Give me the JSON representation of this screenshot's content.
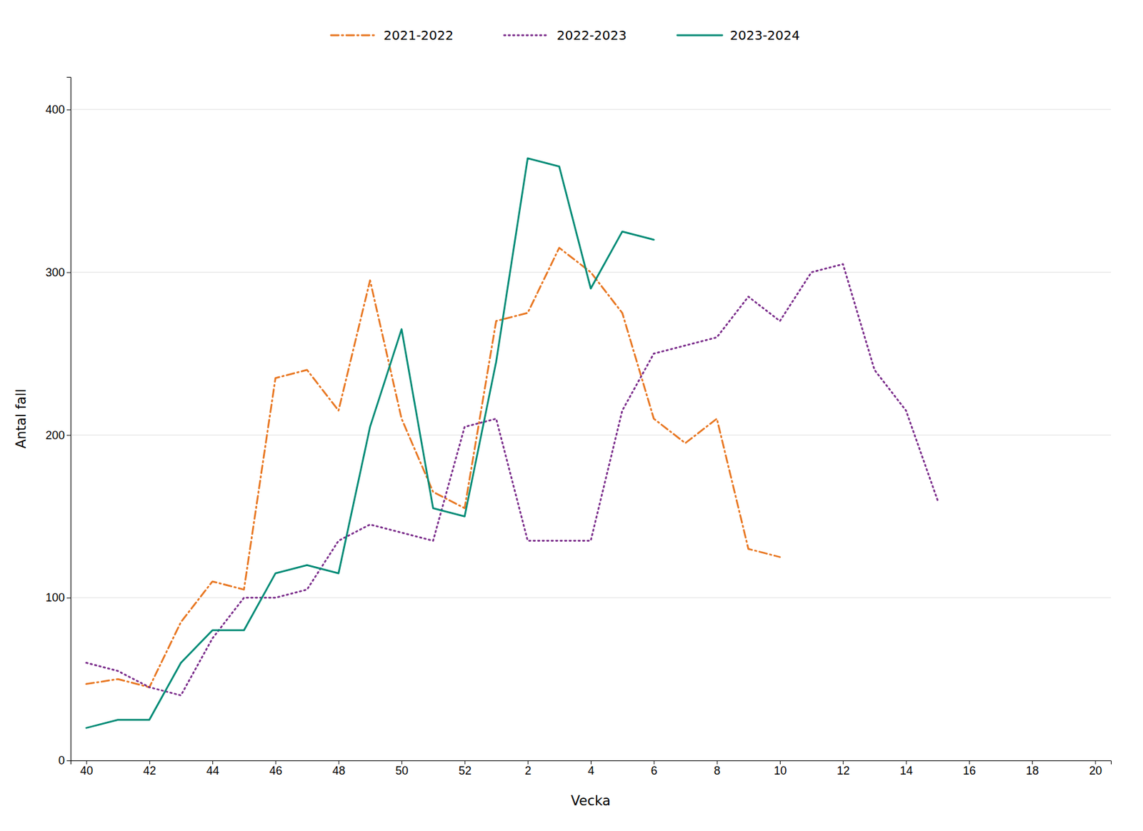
{
  "chart_data": {
    "type": "line",
    "xlabel": "Vecka",
    "ylabel": "Antal fall",
    "categories": [
      "40",
      null,
      "42",
      null,
      "44",
      null,
      "46",
      null,
      "48",
      null,
      "50",
      null,
      "52",
      null,
      "2",
      null,
      "4",
      null,
      "6",
      null,
      "8",
      null,
      "10",
      null,
      "12",
      null,
      "14",
      null,
      "16",
      null,
      "18",
      null,
      "20"
    ],
    "series": [
      {
        "name": "2021-2022",
        "color": "#E87722",
        "line_style": "dashdot",
        "values": [
          47,
          50,
          45,
          85,
          110,
          105,
          235,
          240,
          215,
          295,
          210,
          165,
          155,
          270,
          275,
          315,
          300,
          275,
          210,
          195,
          210,
          130,
          125,
          null,
          null,
          null,
          null,
          null,
          null,
          null,
          null,
          null,
          null
        ]
      },
      {
        "name": "2022-2023",
        "color": "#7B2D8B",
        "line_style": "dotted",
        "values": [
          60,
          55,
          45,
          40,
          75,
          100,
          100,
          105,
          135,
          145,
          140,
          135,
          205,
          210,
          135,
          135,
          135,
          215,
          250,
          255,
          260,
          285,
          270,
          300,
          305,
          240,
          215,
          160,
          null,
          null,
          null,
          null,
          null
        ]
      },
      {
        "name": "2023-2024",
        "color": "#008B76",
        "line_style": "solid",
        "values": [
          20,
          25,
          25,
          60,
          80,
          80,
          115,
          120,
          115,
          205,
          265,
          155,
          150,
          245,
          370,
          365,
          290,
          325,
          320,
          null,
          null,
          null,
          null,
          null,
          null,
          null,
          null,
          null,
          null,
          null,
          null,
          null,
          null
        ]
      }
    ],
    "ylim": [
      0,
      420
    ],
    "yticks": [
      0,
      100,
      200,
      300,
      400
    ],
    "grid": true,
    "legend": "top"
  }
}
